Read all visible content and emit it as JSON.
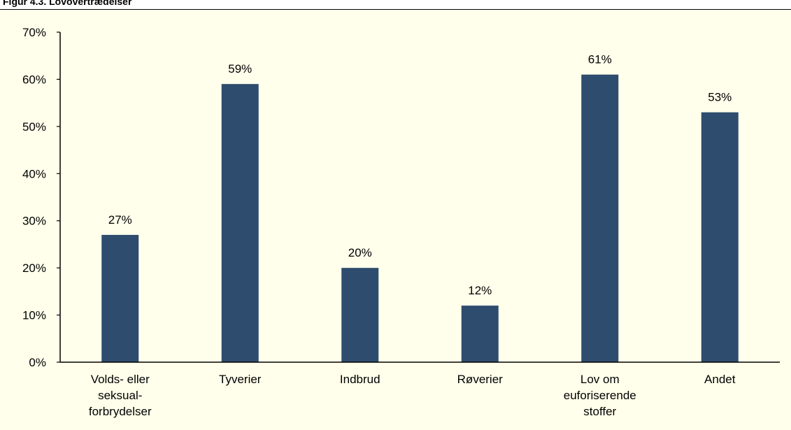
{
  "figure": {
    "title": "Figur 4.3. Lovovertrædelser",
    "background": "#FFFFEB"
  },
  "chart_data": {
    "type": "bar",
    "categories": [
      [
        "Volds- eller",
        "seksual-",
        "forbrydelser"
      ],
      [
        "Tyverier"
      ],
      [
        "Indbrud"
      ],
      [
        "Røverier"
      ],
      [
        "Lov om",
        "euforiserende",
        "stoffer"
      ],
      [
        "Andet"
      ]
    ],
    "values": [
      0.27,
      0.59,
      0.2,
      0.12,
      0.61,
      0.53
    ],
    "data_labels": [
      "27%",
      "59%",
      "20%",
      "12%",
      "61%",
      "53%"
    ],
    "ylim": [
      0,
      0.7
    ],
    "yticks": [
      {
        "value": 0,
        "label": "0%"
      },
      {
        "value": 0.1,
        "label": "10%"
      },
      {
        "value": 0.2,
        "label": "20%"
      },
      {
        "value": 0.3,
        "label": "30%"
      },
      {
        "value": 0.4,
        "label": "40%"
      },
      {
        "value": 0.5,
        "label": "50%"
      },
      {
        "value": 0.6,
        "label": "60%"
      },
      {
        "value": 0.7,
        "label": "70%"
      }
    ],
    "bar_color": "#2E4C6D",
    "axis_color": "#000000",
    "grid": false,
    "legend": "none"
  }
}
